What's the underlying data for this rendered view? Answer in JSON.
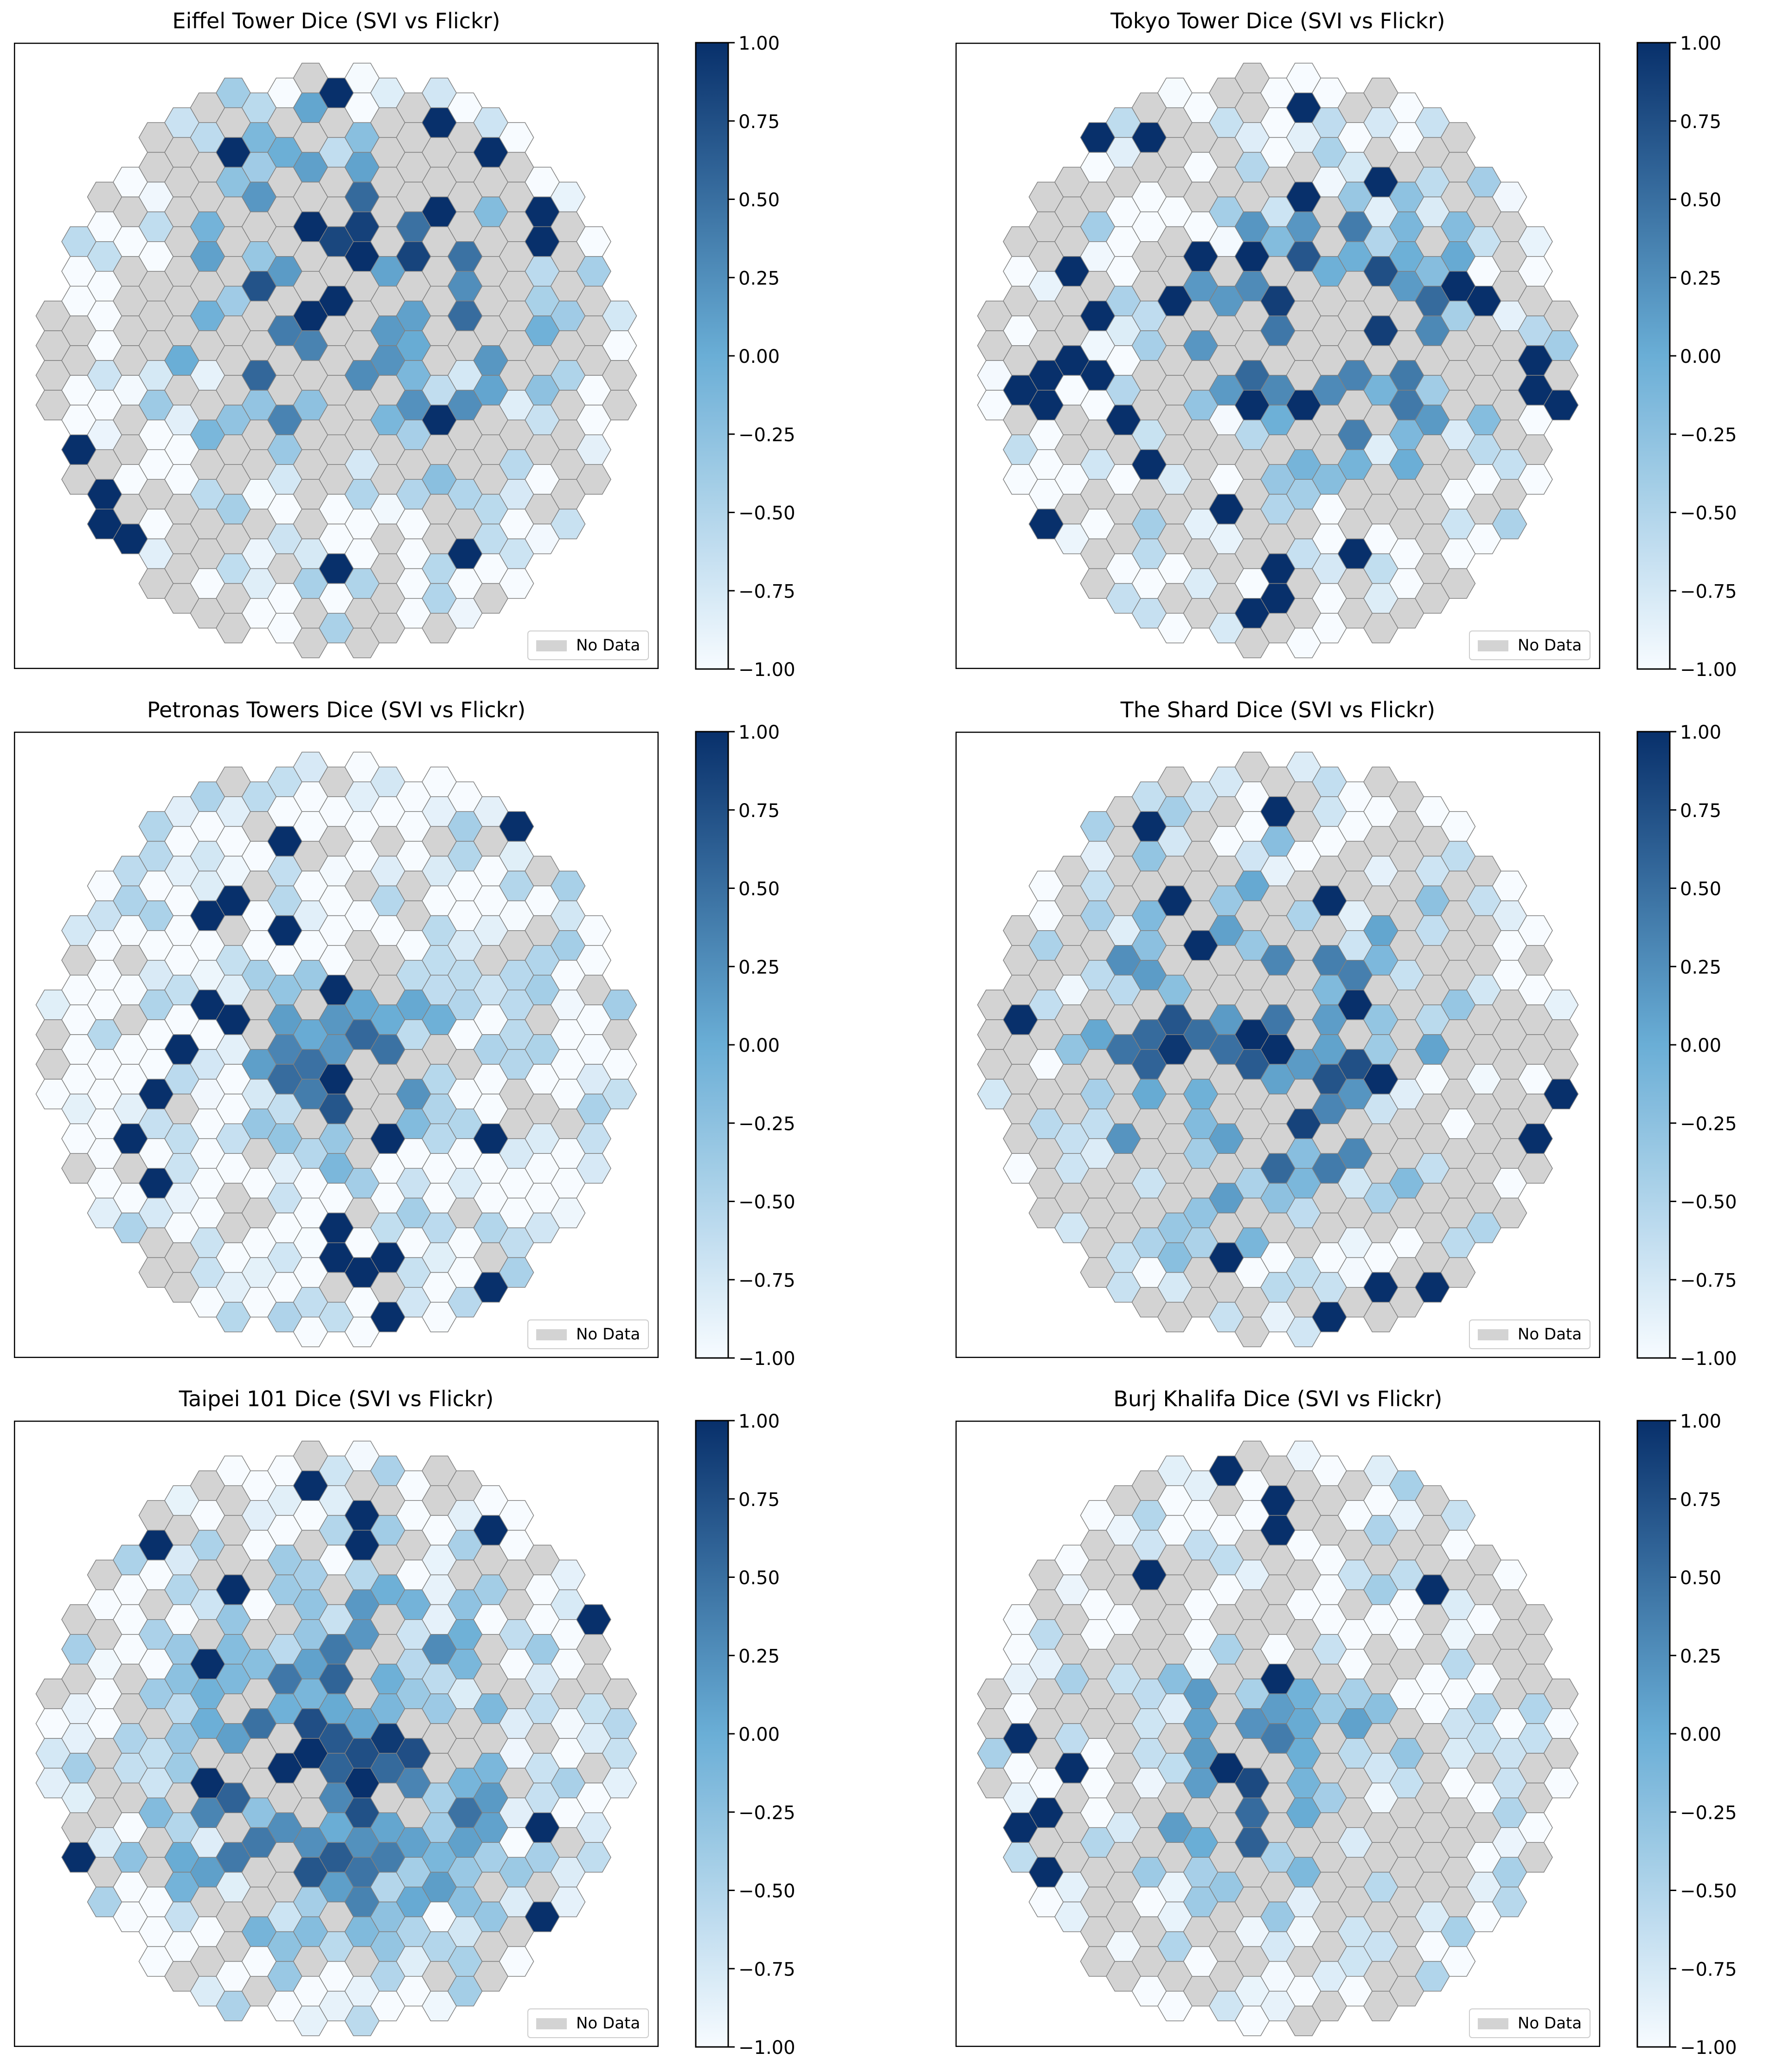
{
  "colormap": "Blues",
  "colors": {
    "no_data": "#d3d3d3",
    "hex_edge": "#808080",
    "cmap_low": "#f7fbff",
    "cmap_mid": "#6aaed6",
    "cmap_high": "#08306b"
  },
  "chart_data": [
    {
      "type": "heatmap",
      "title": "Eiffel Tower Dice (SVI vs Flickr)",
      "colorbar": {
        "ticks": [
          1.0,
          0.75,
          0.5,
          0.25,
          0.0,
          -0.25,
          -0.5,
          -0.75,
          -1.0
        ],
        "tick_labels": [
          "1.00",
          "0.75",
          "0.50",
          "0.25",
          "0.00",
          "−0.25",
          "−0.50",
          "−0.75",
          "−1.00"
        ],
        "vmin": -1.0,
        "vmax": 1.0
      },
      "legend": {
        "label": "No Data",
        "position": "lower-right"
      },
      "grid": false,
      "seed": 11,
      "no_data_fraction": 0.55,
      "center": [
        0.05,
        -0.25
      ],
      "spread": 0.85
    },
    {
      "type": "heatmap",
      "title": "Tokyo Tower Dice (SVI vs Flickr)",
      "colorbar": {
        "ticks": [
          1.0,
          0.75,
          0.5,
          0.25,
          0.0,
          -0.25,
          -0.5,
          -0.75,
          -1.0
        ],
        "tick_labels": [
          "1.00",
          "0.75",
          "0.50",
          "0.25",
          "0.00",
          "−0.25",
          "−0.50",
          "−0.75",
          "−1.00"
        ],
        "vmin": -1.0,
        "vmax": 1.0
      },
      "legend": {
        "label": "No Data",
        "position": "lower-right"
      },
      "grid": false,
      "seed": 23,
      "no_data_fraction": 0.45,
      "center": [
        0.2,
        -0.1
      ],
      "spread": 0.7
    },
    {
      "type": "heatmap",
      "title": "Petronas Towers Dice (SVI vs Flickr)",
      "colorbar": {
        "ticks": [
          1.0,
          0.75,
          0.5,
          0.25,
          0.0,
          -0.25,
          -0.5,
          -0.75,
          -1.0
        ],
        "tick_labels": [
          "1.00",
          "0.75",
          "0.50",
          "0.25",
          "0.00",
          "−0.25",
          "−0.50",
          "−0.75",
          "−1.00"
        ],
        "vmin": -1.0,
        "vmax": 1.0
      },
      "legend": {
        "label": "No Data",
        "position": "lower-right"
      },
      "grid": false,
      "seed": 37,
      "no_data_fraction": 0.2,
      "center": [
        0.05,
        0.05
      ],
      "spread": 0.45
    },
    {
      "type": "heatmap",
      "title": "The Shard Dice (SVI vs Flickr)",
      "colorbar": {
        "ticks": [
          1.0,
          0.75,
          0.5,
          0.25,
          0.0,
          -0.25,
          -0.5,
          -0.75,
          -1.0
        ],
        "tick_labels": [
          "1.00",
          "0.75",
          "0.50",
          "0.25",
          "0.00",
          "−0.25",
          "−0.50",
          "−0.75",
          "−1.00"
        ],
        "vmin": -1.0,
        "vmax": 1.0
      },
      "legend": {
        "label": "No Data",
        "position": "lower-right"
      },
      "grid": false,
      "seed": 53,
      "no_data_fraction": 0.5,
      "center": [
        -0.1,
        0.0
      ],
      "spread": 0.9
    },
    {
      "type": "heatmap",
      "title": "Taipei 101 Dice (SVI vs Flickr)",
      "colorbar": {
        "ticks": [
          1.0,
          0.75,
          0.5,
          0.25,
          0.0,
          -0.25,
          -0.5,
          -0.75,
          -1.0
        ],
        "tick_labels": [
          "1.00",
          "0.75",
          "0.50",
          "0.25",
          "0.00",
          "−0.25",
          "−0.50",
          "−0.75",
          "−1.00"
        ],
        "vmin": -1.0,
        "vmax": 1.0
      },
      "legend": {
        "label": "No Data",
        "position": "lower-right"
      },
      "grid": false,
      "seed": 71,
      "no_data_fraction": 0.3,
      "center": [
        0.0,
        0.1
      ],
      "spread": 0.85
    },
    {
      "type": "heatmap",
      "title": "Burj Khalifa Dice (SVI vs Flickr)",
      "colorbar": {
        "ticks": [
          1.0,
          0.75,
          0.5,
          0.25,
          0.0,
          -0.25,
          -0.5,
          -0.75,
          -1.0
        ],
        "tick_labels": [
          "1.00",
          "0.75",
          "0.50",
          "0.25",
          "0.00",
          "−0.25",
          "−0.50",
          "−0.75",
          "−1.00"
        ],
        "vmin": -1.0,
        "vmax": 1.0
      },
      "legend": {
        "label": "No Data",
        "position": "lower-right"
      },
      "grid": false,
      "seed": 89,
      "no_data_fraction": 0.42,
      "center": [
        -0.05,
        0.15
      ],
      "spread": 0.55
    }
  ]
}
